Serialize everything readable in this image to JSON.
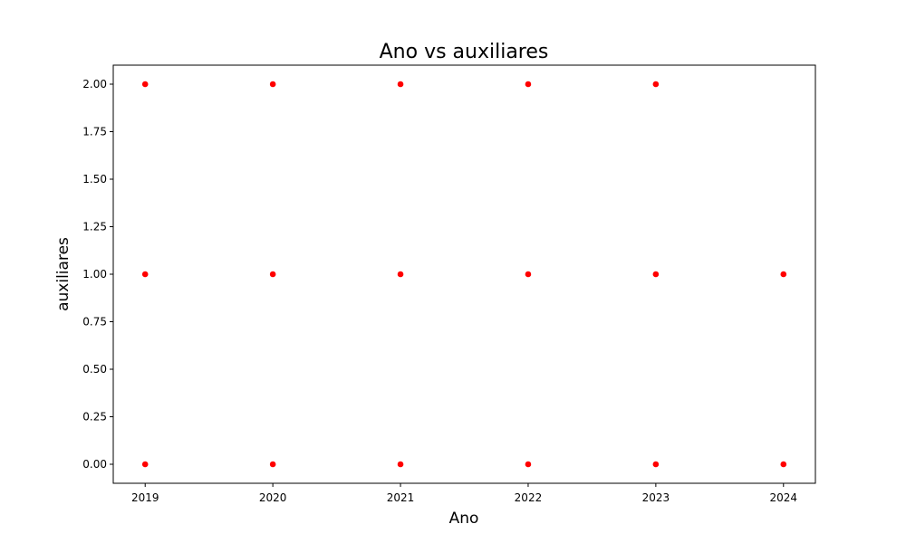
{
  "chart_data": {
    "type": "scatter",
    "title": "Ano vs auxiliares",
    "xlabel": "Ano",
    "ylabel": "auxiliares",
    "xlim": [
      2018.75,
      2024.25
    ],
    "ylim": [
      -0.1,
      2.1
    ],
    "x_ticks": [
      2019,
      2020,
      2021,
      2022,
      2023,
      2024
    ],
    "x_tick_labels": [
      "2019",
      "2020",
      "2021",
      "2022",
      "2023",
      "2024"
    ],
    "y_ticks": [
      0,
      0.25,
      0.5,
      0.75,
      1,
      1.25,
      1.5,
      1.75,
      2
    ],
    "y_tick_labels": [
      "0.00",
      "0.25",
      "0.50",
      "0.75",
      "1.00",
      "1.25",
      "1.50",
      "1.75",
      "2.00"
    ],
    "grid": false,
    "marker_color": "#ff0000",
    "points": [
      {
        "x": 2019,
        "y": 2
      },
      {
        "x": 2019,
        "y": 1
      },
      {
        "x": 2019,
        "y": 0
      },
      {
        "x": 2020,
        "y": 2
      },
      {
        "x": 2020,
        "y": 1
      },
      {
        "x": 2020,
        "y": 0
      },
      {
        "x": 2021,
        "y": 2
      },
      {
        "x": 2021,
        "y": 1
      },
      {
        "x": 2021,
        "y": 0
      },
      {
        "x": 2022,
        "y": 2
      },
      {
        "x": 2022,
        "y": 1
      },
      {
        "x": 2022,
        "y": 0
      },
      {
        "x": 2023,
        "y": 2
      },
      {
        "x": 2023,
        "y": 1
      },
      {
        "x": 2023,
        "y": 0
      },
      {
        "x": 2024,
        "y": 1
      },
      {
        "x": 2024,
        "y": 0
      }
    ]
  }
}
